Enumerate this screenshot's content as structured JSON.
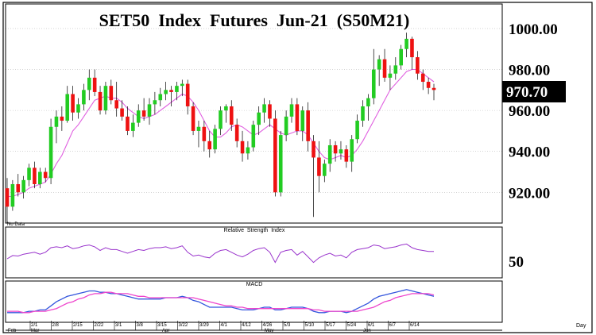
{
  "chart_data": [
    {
      "type": "candlestick",
      "title": "SET50  Index  Futures  Jun-21  (S50M21)",
      "ylim": [
        905,
        1012
      ],
      "yticks": [
        "920.00",
        "940.00",
        "960.00",
        "980.00",
        "1000.00"
      ],
      "last_value": "970.70",
      "note": "No Data",
      "up_color": "#22cc22",
      "down_color": "#ee1111",
      "ma_color": "#e060e0",
      "candles": [
        [
          922,
          927,
          905,
          913
        ],
        [
          913,
          926,
          911,
          924
        ],
        [
          924,
          929,
          918,
          920
        ],
        [
          920,
          928,
          917,
          926
        ],
        [
          926,
          934,
          923,
          932
        ],
        [
          932,
          935,
          922,
          924
        ],
        [
          924,
          932,
          922,
          930
        ],
        [
          930,
          932,
          925,
          927
        ],
        [
          927,
          956,
          924,
          952
        ],
        [
          952,
          960,
          944,
          957
        ],
        [
          957,
          962,
          950,
          955
        ],
        [
          955,
          972,
          954,
          968
        ],
        [
          968,
          972,
          955,
          959
        ],
        [
          959,
          966,
          956,
          963
        ],
        [
          963,
          973,
          960,
          970
        ],
        [
          970,
          980,
          965,
          976
        ],
        [
          976,
          980,
          967,
          969
        ],
        [
          969,
          972,
          958,
          960
        ],
        [
          960,
          974,
          958,
          972
        ],
        [
          972,
          975,
          963,
          965
        ],
        [
          965,
          974,
          957,
          961
        ],
        [
          961,
          965,
          955,
          957
        ],
        [
          957,
          962,
          948,
          950
        ],
        [
          950,
          958,
          947,
          954
        ],
        [
          954,
          963,
          952,
          960
        ],
        [
          960,
          966,
          955,
          957
        ],
        [
          957,
          966,
          953,
          963
        ],
        [
          963,
          969,
          958,
          965
        ],
        [
          965,
          971,
          962,
          968
        ],
        [
          968,
          974,
          965,
          970
        ],
        [
          970,
          972,
          962,
          969
        ],
        [
          969,
          974,
          965,
          972
        ],
        [
          972,
          975,
          967,
          973
        ],
        [
          973,
          975,
          958,
          962
        ],
        [
          962,
          964,
          948,
          950
        ],
        [
          950,
          955,
          942,
          952
        ],
        [
          952,
          955,
          940,
          945
        ],
        [
          945,
          950,
          937,
          941
        ],
        [
          941,
          953,
          939,
          951
        ],
        [
          951,
          962,
          948,
          960
        ],
        [
          960,
          963,
          954,
          962
        ],
        [
          962,
          965,
          950,
          953
        ],
        [
          953,
          956,
          942,
          945
        ],
        [
          945,
          950,
          935,
          939
        ],
        [
          939,
          945,
          936,
          942
        ],
        [
          942,
          955,
          940,
          953
        ],
        [
          953,
          962,
          948,
          959
        ],
        [
          959,
          966,
          954,
          963
        ],
        [
          963,
          965,
          952,
          956
        ],
        [
          956,
          960,
          918,
          920
        ],
        [
          920,
          950,
          918,
          948
        ],
        [
          948,
          960,
          945,
          957
        ],
        [
          957,
          966,
          954,
          963
        ],
        [
          963,
          966,
          948,
          950
        ],
        [
          950,
          962,
          945,
          960
        ],
        [
          960,
          964,
          940,
          945
        ],
        [
          945,
          948,
          908,
          937
        ],
        [
          937,
          945,
          920,
          928
        ],
        [
          928,
          936,
          925,
          934
        ],
        [
          934,
          946,
          930,
          943
        ],
        [
          943,
          945,
          935,
          939
        ],
        [
          939,
          945,
          936,
          941
        ],
        [
          941,
          943,
          932,
          935
        ],
        [
          935,
          948,
          930,
          946
        ],
        [
          946,
          958,
          944,
          955
        ],
        [
          955,
          965,
          952,
          962
        ],
        [
          962,
          968,
          955,
          966
        ],
        [
          966,
          990,
          963,
          980
        ],
        [
          980,
          987,
          972,
          985
        ],
        [
          985,
          990,
          974,
          976
        ],
        [
          976,
          982,
          970,
          978
        ],
        [
          978,
          986,
          975,
          982
        ],
        [
          982,
          992,
          980,
          990
        ],
        [
          990,
          998,
          986,
          995
        ],
        [
          995,
          996,
          980,
          986
        ],
        [
          986,
          989,
          975,
          978
        ],
        [
          978,
          980,
          970,
          974
        ],
        [
          974,
          976,
          968,
          971
        ],
        [
          971,
          973,
          965,
          970
        ]
      ],
      "ma": [
        918,
        918,
        919,
        920,
        922,
        923,
        924,
        925,
        929,
        934,
        938,
        944,
        950,
        953,
        957,
        961,
        965,
        966,
        967,
        966,
        966,
        964,
        961,
        959,
        957,
        956,
        957,
        958,
        960,
        962,
        964,
        966,
        968,
        967,
        964,
        960,
        955,
        950,
        947,
        947,
        949,
        952,
        953,
        952,
        950,
        948,
        949,
        951,
        953,
        951,
        949,
        948,
        949,
        950,
        950,
        948,
        944,
        940,
        937,
        936,
        937,
        938,
        937,
        938,
        941,
        945,
        950,
        955,
        960,
        965,
        970,
        973,
        976,
        979,
        980,
        980,
        978,
        976,
        974
      ],
      "date_labels": [
        "2/1",
        "2/8",
        "2/15",
        "2/22",
        "3/1",
        "3/8",
        "3/15",
        "3/22",
        "3/29",
        "4/1",
        "4/12",
        "4/26",
        "5/3",
        "5/10",
        "5/17",
        "5/24",
        "6/1",
        "6/7",
        "6/14"
      ],
      "month_labels": [
        "Feb",
        "Mar",
        "Apr",
        "May",
        "Jun"
      ],
      "x_unit_label": "Day"
    },
    {
      "type": "line",
      "title": "Relative  Strength  Index",
      "ylim": [
        0,
        100
      ],
      "yticks": [
        "50"
      ],
      "series": [
        {
          "color": "#9933cc",
          "values": [
            38,
            45,
            44,
            48,
            50,
            52,
            48,
            52,
            62,
            64,
            62,
            66,
            60,
            62,
            66,
            68,
            64,
            56,
            62,
            58,
            58,
            54,
            50,
            54,
            58,
            56,
            60,
            62,
            62,
            64,
            60,
            62,
            66,
            52,
            44,
            46,
            42,
            40,
            50,
            56,
            58,
            52,
            46,
            42,
            48,
            56,
            60,
            62,
            52,
            30,
            52,
            56,
            58,
            46,
            54,
            42,
            30,
            40,
            46,
            50,
            44,
            46,
            40,
            52,
            58,
            60,
            62,
            68,
            66,
            60,
            62,
            64,
            68,
            70,
            62,
            58,
            56,
            54,
            54
          ]
        }
      ]
    },
    {
      "type": "line",
      "title": "MACD",
      "ylim": [
        -12,
        15
      ],
      "series": [
        {
          "color": "#3355dd",
          "values": [
            -6,
            -6,
            -6,
            -6,
            -5,
            -5,
            -4,
            -4,
            -1,
            2,
            4,
            6,
            7,
            8,
            9,
            10,
            10,
            9,
            9,
            8,
            8,
            7,
            6,
            5,
            4,
            4,
            4,
            4,
            4,
            5,
            5,
            5,
            6,
            5,
            3,
            2,
            0,
            -2,
            -2,
            -2,
            -2,
            -2,
            -3,
            -4,
            -4,
            -4,
            -3,
            -2,
            -2,
            -4,
            -4,
            -3,
            -2,
            -2,
            -2,
            -3,
            -5,
            -6,
            -6,
            -5,
            -5,
            -5,
            -6,
            -5,
            -3,
            -1,
            1,
            4,
            6,
            7,
            8,
            9,
            10,
            11,
            10,
            9,
            8,
            7,
            6
          ]
        },
        {
          "color": "#ee44cc",
          "values": [
            -5,
            -5,
            -5,
            -6,
            -6,
            -5,
            -5,
            -5,
            -4,
            -3,
            -1,
            1,
            2,
            4,
            5,
            7,
            8,
            8,
            9,
            9,
            8,
            8,
            8,
            7,
            6,
            6,
            5,
            5,
            5,
            5,
            5,
            5,
            5,
            5,
            5,
            4,
            3,
            2,
            1,
            0,
            -1,
            -1,
            -2,
            -2,
            -3,
            -3,
            -3,
            -3,
            -3,
            -3,
            -3,
            -3,
            -3,
            -3,
            -3,
            -3,
            -4,
            -4,
            -5,
            -5,
            -5,
            -5,
            -5,
            -5,
            -5,
            -4,
            -3,
            -2,
            0,
            2,
            3,
            5,
            6,
            7,
            8,
            8,
            8,
            8,
            7
          ]
        }
      ]
    }
  ]
}
